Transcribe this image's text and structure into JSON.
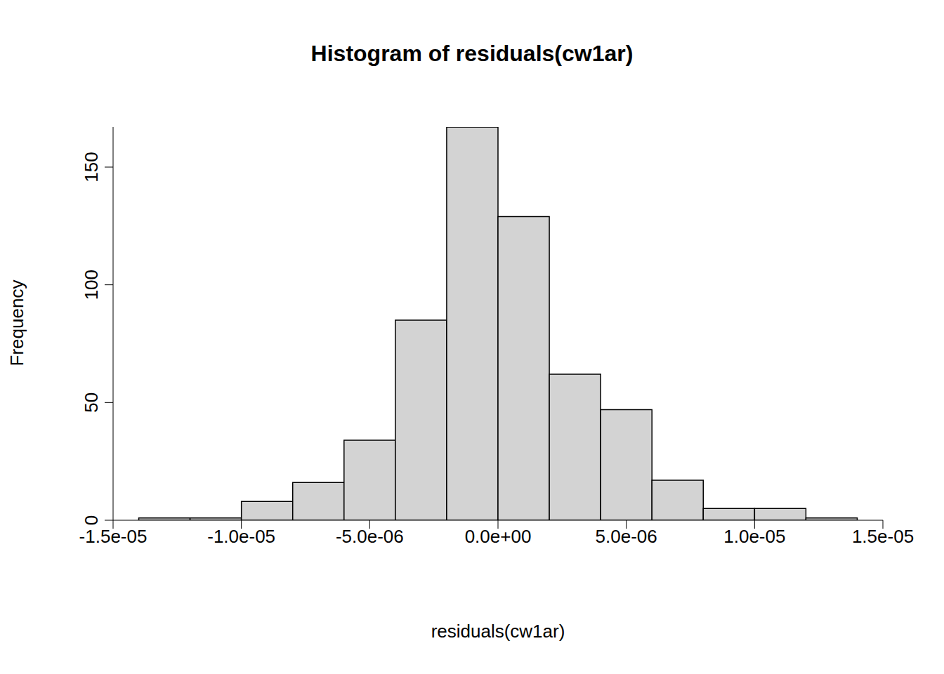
{
  "chart_data": {
    "type": "histogram",
    "title": "Histogram of residuals(cw1ar)",
    "x_label": "residuals(cw1ar)",
    "y_label": "Frequency",
    "bins": [
      -1.4e-05,
      -1.2e-05,
      -1e-05,
      -8e-06,
      -6e-06,
      -4e-06,
      -2e-06,
      0,
      2e-06,
      4e-06,
      6e-06,
      8e-06,
      1e-05,
      1.2e-05,
      1.4e-05
    ],
    "counts": [
      1,
      1,
      8,
      16,
      34,
      85,
      167,
      129,
      62,
      47,
      17,
      5,
      5,
      1
    ],
    "color": "#d3d3d3",
    "xlim": [
      -1.5e-05,
      1.5e-05
    ],
    "xticks": [
      {
        "value": -1.5e-05,
        "label": "-1.5e-05"
      },
      {
        "value": -1e-05,
        "label": "-1.0e-05"
      },
      {
        "value": -5e-06,
        "label": "-5.0e-06"
      },
      {
        "value": 0,
        "label": "0.0e+00"
      },
      {
        "value": 5e-06,
        "label": "5.0e-06"
      },
      {
        "value": 1e-05,
        "label": "1.0e-05"
      },
      {
        "value": 1.5e-05,
        "label": "1.5e-05"
      }
    ],
    "ylim": [
      0,
      167
    ],
    "yticks": [
      0,
      50,
      100,
      150
    ],
    "grid": false
  }
}
